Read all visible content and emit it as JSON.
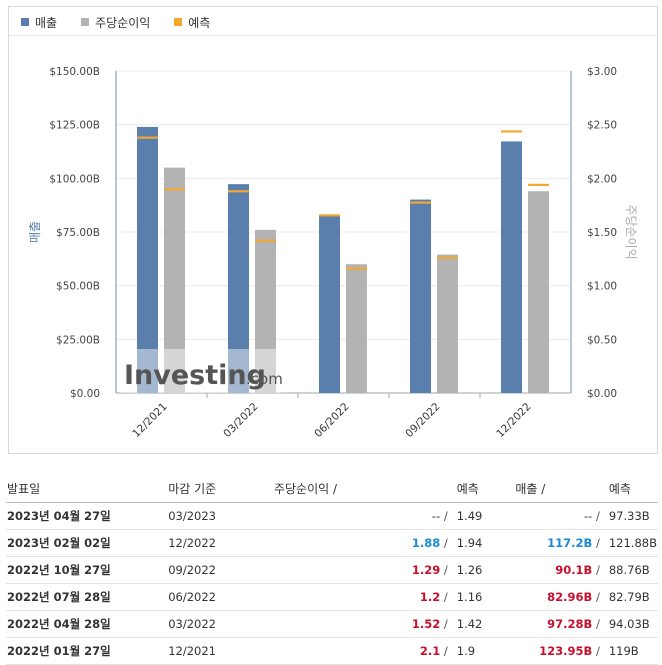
{
  "legend": [
    {
      "label": "매출",
      "color": "#5a7fad"
    },
    {
      "label": "주당순이익",
      "color": "#b3b3b3"
    },
    {
      "label": "예측",
      "color": "#f0a830"
    }
  ],
  "watermark": {
    "brand": "Investing",
    "suffix": ".com"
  },
  "chart_data": {
    "type": "bar",
    "categories": [
      "12/2021",
      "03/2022",
      "06/2022",
      "09/2022",
      "12/2022"
    ],
    "series": [
      {
        "name": "매출",
        "axis": "left",
        "color": "#5a7fad",
        "values": [
          123.95,
          97.28,
          82.96,
          90.1,
          117.2
        ],
        "forecast": [
          119,
          94.03,
          82.79,
          88.76,
          121.88
        ]
      },
      {
        "name": "주당순이익",
        "axis": "right",
        "color": "#b3b3b3",
        "values": [
          2.1,
          1.52,
          1.2,
          1.29,
          1.88
        ],
        "forecast": [
          1.9,
          1.42,
          1.16,
          1.26,
          1.94
        ]
      }
    ],
    "forecast_color": "#f0a830",
    "ylabel": "매출",
    "y2label": "주당순이익",
    "ylim": [
      0,
      150
    ],
    "y2lim": [
      0,
      3
    ],
    "yticks": [
      "$0.00",
      "$25.00B",
      "$50.00B",
      "$75.00B",
      "$100.00B",
      "$125.00B",
      "$150.00B"
    ],
    "y2ticks": [
      "$0.00",
      "$0.50",
      "$1.00",
      "$1.50",
      "$2.00",
      "$2.50",
      "$3.00"
    ],
    "grid": true,
    "legend_position": "top-left"
  },
  "table": {
    "headers": {
      "date": "발표일",
      "period": "마감 기준",
      "eps": "주당순이익",
      "eps_forecast": "예측",
      "revenue": "매출",
      "revenue_forecast": "예측",
      "slash": "/"
    },
    "rows": [
      {
        "date": "2023년 04월 27일",
        "period": "03/2023",
        "eps": "--",
        "eps_class": "",
        "eps_forecast": "1.49",
        "revenue": "--",
        "revenue_class": "",
        "revenue_forecast": "97.33B"
      },
      {
        "date": "2023년 02월 02일",
        "period": "12/2022",
        "eps": "1.88",
        "eps_class": "pos",
        "eps_forecast": "1.94",
        "revenue": "117.2B",
        "revenue_class": "pos",
        "revenue_forecast": "121.88B"
      },
      {
        "date": "2022년 10월 27일",
        "period": "09/2022",
        "eps": "1.29",
        "eps_class": "neg",
        "eps_forecast": "1.26",
        "revenue": "90.1B",
        "revenue_class": "neg",
        "revenue_forecast": "88.76B"
      },
      {
        "date": "2022년 07월 28일",
        "period": "06/2022",
        "eps": "1.2",
        "eps_class": "neg",
        "eps_forecast": "1.16",
        "revenue": "82.96B",
        "revenue_class": "neg",
        "revenue_forecast": "82.79B"
      },
      {
        "date": "2022년 04월 28일",
        "period": "03/2022",
        "eps": "1.52",
        "eps_class": "neg",
        "eps_forecast": "1.42",
        "revenue": "97.28B",
        "revenue_class": "neg",
        "revenue_forecast": "94.03B"
      },
      {
        "date": "2022년 01월 27일",
        "period": "12/2021",
        "eps": "2.1",
        "eps_class": "neg",
        "eps_forecast": "1.9",
        "revenue": "123.95B",
        "revenue_class": "neg",
        "revenue_forecast": "119B"
      }
    ]
  }
}
